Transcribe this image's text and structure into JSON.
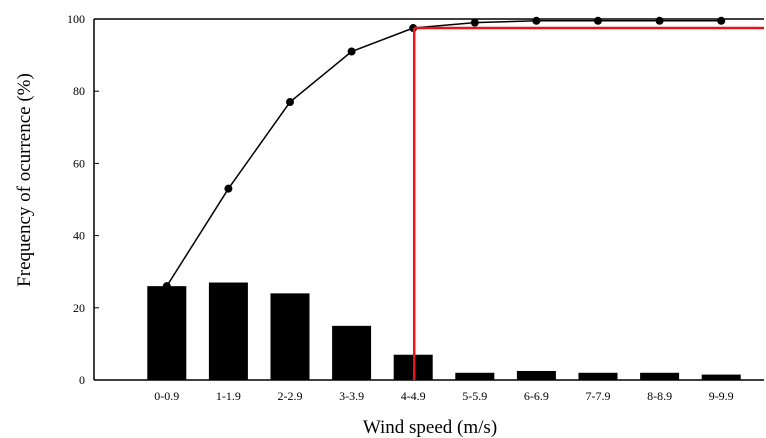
{
  "chart_data": {
    "type": "bar",
    "categories": [
      "0-0.9",
      "1-1.9",
      "2-2.9",
      "3-3.9",
      "4-4.9",
      "5-5.9",
      "6-6.9",
      "7-7.9",
      "8-8.9",
      "9-9.9"
    ],
    "series": [
      {
        "type": "bar",
        "values": [
          26,
          27,
          24,
          15,
          7,
          2,
          2.5,
          2,
          2,
          1.5
        ]
      },
      {
        "type": "line",
        "values": [
          26,
          53,
          77,
          91,
          97.5,
          99,
          99.5,
          99.5,
          99.5,
          99.5
        ]
      }
    ],
    "reference_line": {
      "x_category": "4-4.9",
      "y": 97.5,
      "color": "#e8141a"
    },
    "xlabel": "Wind speed (m/s)",
    "ylabel": "Frequency of ocurrence (%)",
    "yticks": [
      "0",
      "20",
      "40",
      "60",
      "80",
      "100"
    ],
    "ylim": [
      0,
      100
    ],
    "grid": false,
    "colors": {
      "bars": "#000000",
      "line": "#000000",
      "reference": "#e8141a"
    }
  }
}
